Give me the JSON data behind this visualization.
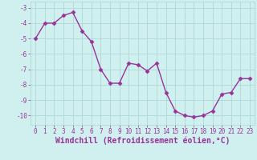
{
  "x": [
    0,
    1,
    2,
    3,
    4,
    5,
    6,
    7,
    8,
    9,
    10,
    11,
    12,
    13,
    14,
    15,
    16,
    17,
    18,
    19,
    20,
    21,
    22,
    23
  ],
  "y": [
    -5.0,
    -4.0,
    -4.0,
    -3.5,
    -3.3,
    -4.5,
    -5.2,
    -7.0,
    -7.9,
    -7.9,
    -6.6,
    -6.7,
    -7.1,
    -6.6,
    -8.5,
    -9.7,
    -10.0,
    -10.1,
    -10.0,
    -9.7,
    -8.6,
    -8.5,
    -7.6,
    -7.6
  ],
  "line_color": "#993399",
  "marker": "D",
  "markersize": 2.5,
  "linewidth": 1.0,
  "xlabel": "Windchill (Refroidissement éolien,°C)",
  "xlim": [
    -0.5,
    23.5
  ],
  "ylim": [
    -10.6,
    -2.6
  ],
  "yticks": [
    -10,
    -9,
    -8,
    -7,
    -6,
    -5,
    -4,
    -3
  ],
  "xticks": [
    0,
    1,
    2,
    3,
    4,
    5,
    6,
    7,
    8,
    9,
    10,
    11,
    12,
    13,
    14,
    15,
    16,
    17,
    18,
    19,
    20,
    21,
    22,
    23
  ],
  "background_color": "#cff0ee",
  "grid_color": "#aed8d8",
  "line_purple": "#993399",
  "tick_fontsize": 5.5,
  "xlabel_fontsize": 7.0
}
